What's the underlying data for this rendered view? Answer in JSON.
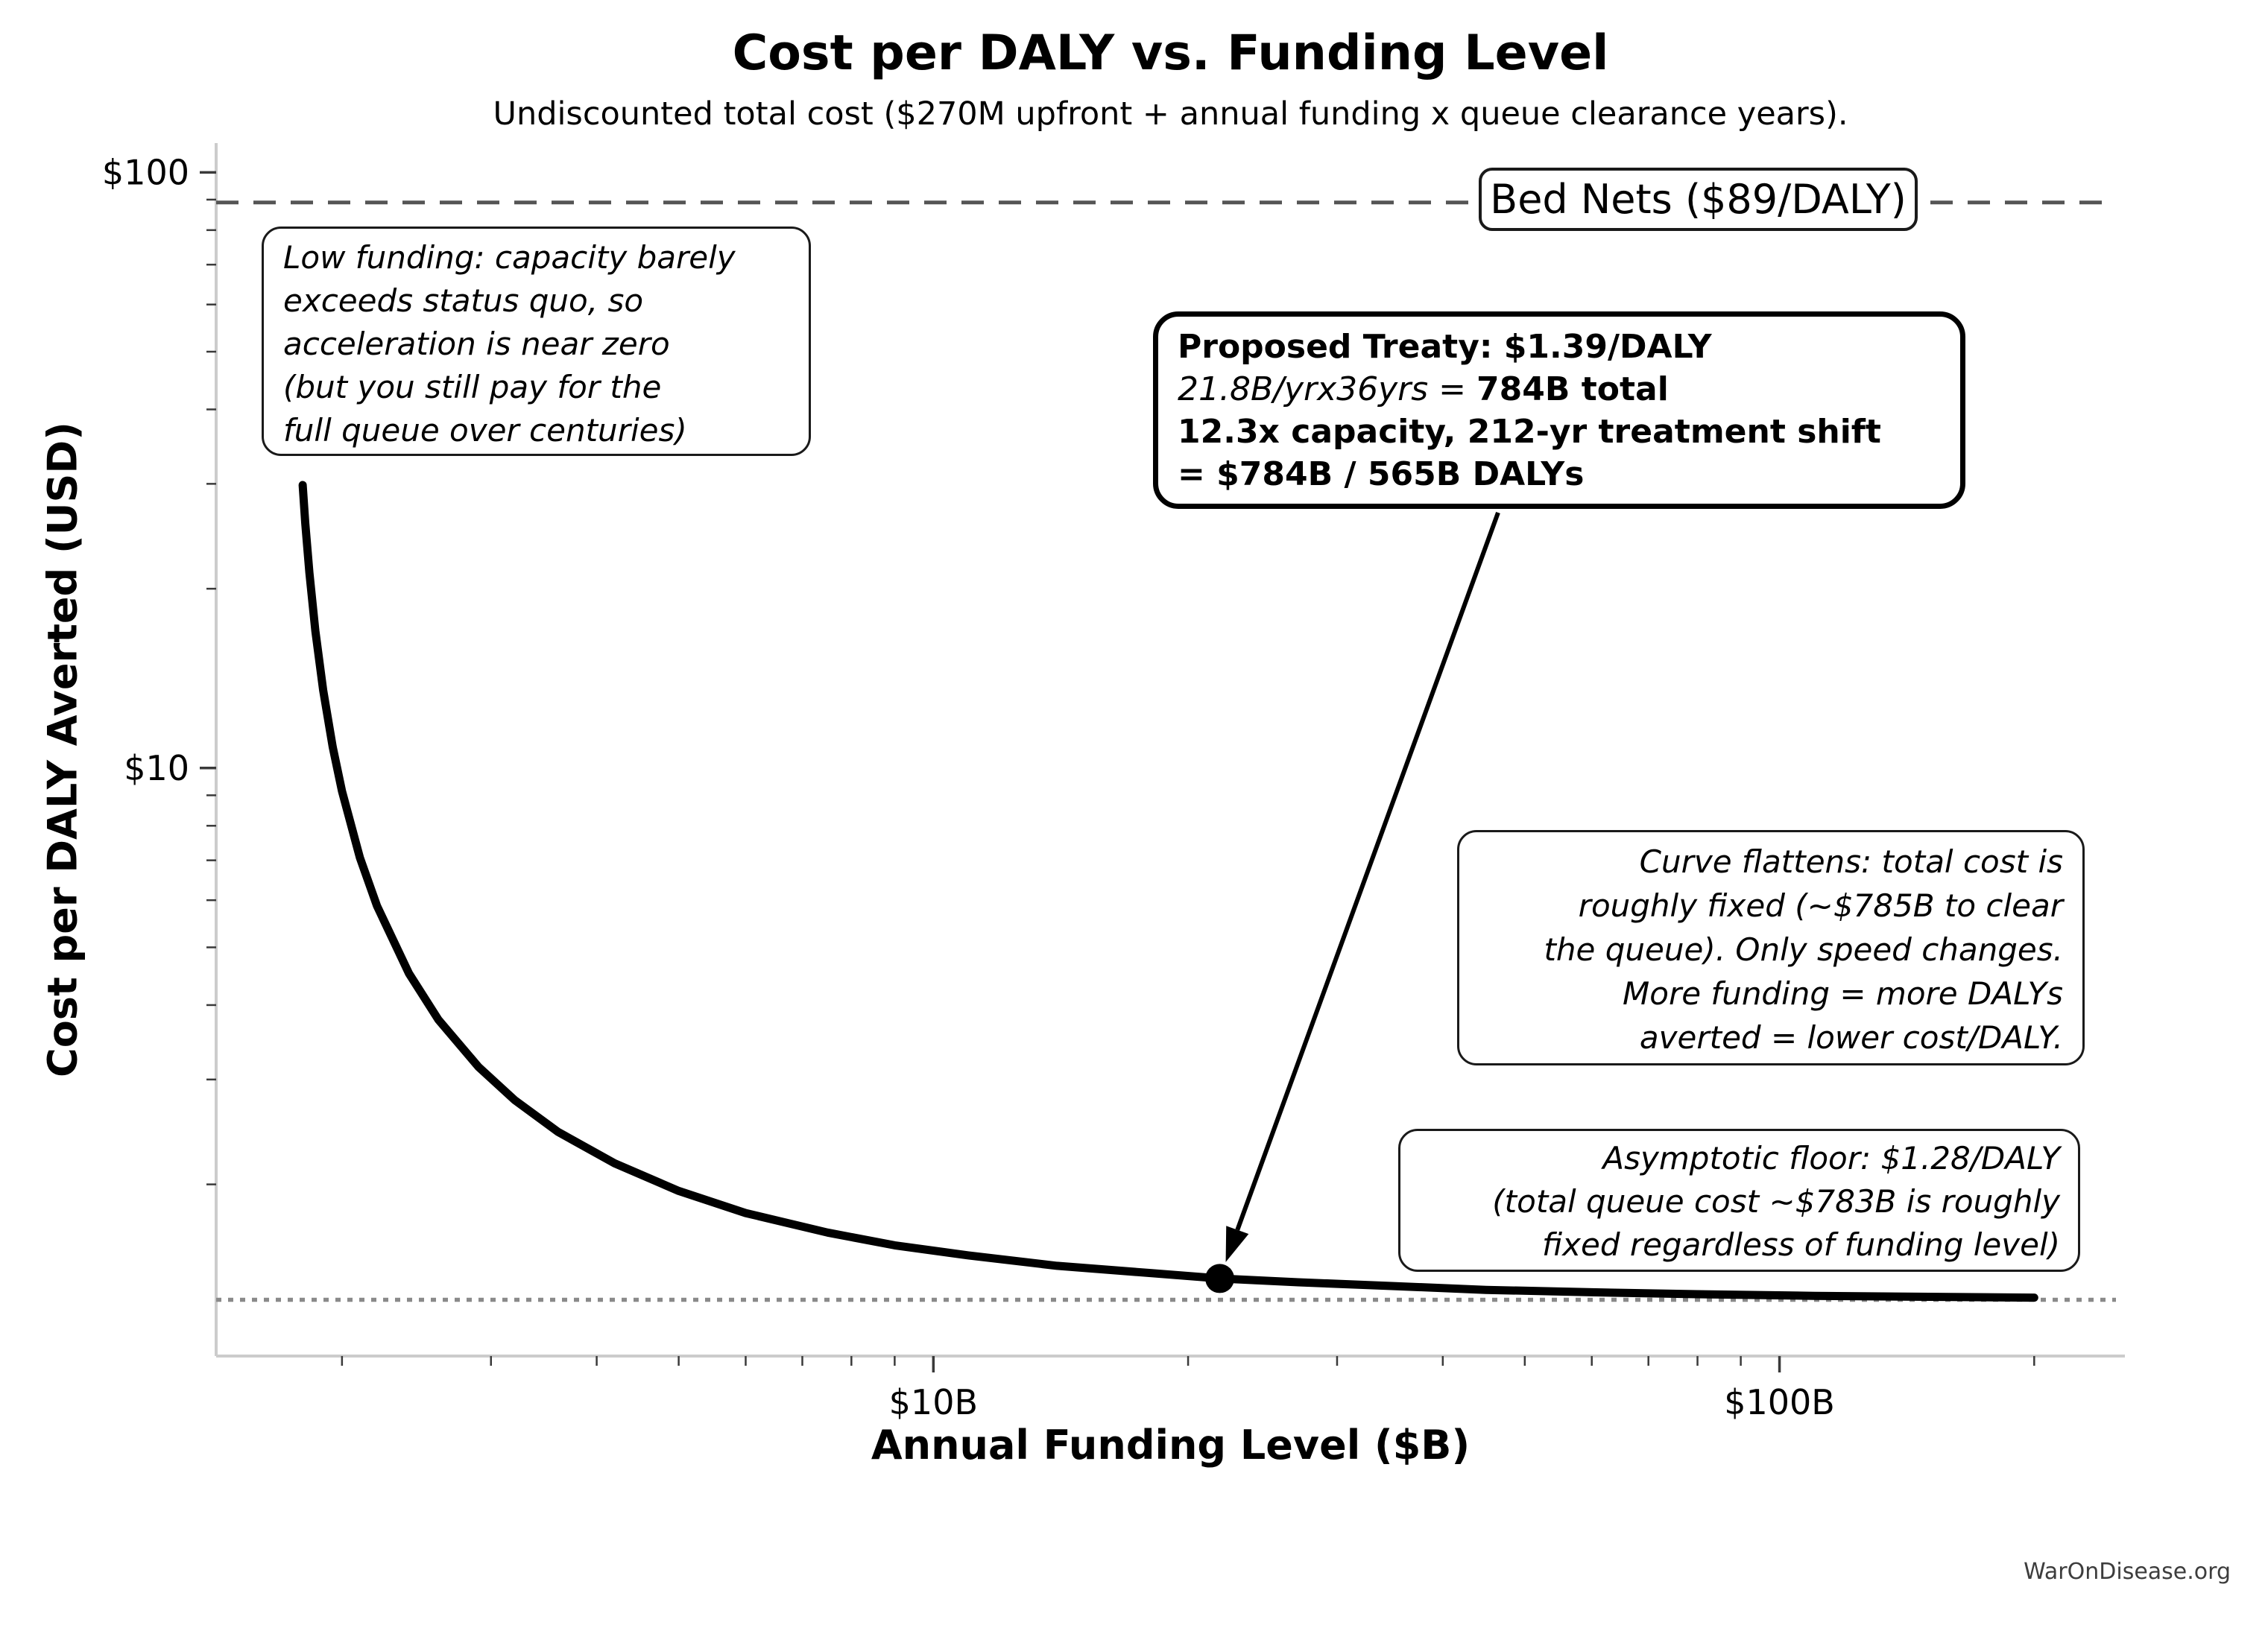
{
  "title": "Cost per DALY vs. Funding Level",
  "subtitle": "Undiscounted total cost ($270M upfront + annual funding x queue clearance years).",
  "watermark": "WarOnDisease.org",
  "chart_data": {
    "type": "line",
    "title": "Cost per DALY vs. Funding Level",
    "subtitle": "Undiscounted total cost ($270M upfront + annual funding x queue clearance years).",
    "xlabel": "Annual Funding Level ($B)",
    "ylabel": "Cost per DALY Averted (USD)",
    "x_scale": "log",
    "y_scale": "log",
    "xlim": [
      1.42,
      256
    ],
    "ylim": [
      1.03,
      112
    ],
    "grid": false,
    "x_ticks": [
      {
        "value": 10,
        "label": "$10B"
      },
      {
        "value": 100,
        "label": "$100B"
      }
    ],
    "x_minor_ticks": [
      2,
      3,
      4,
      5,
      6,
      7,
      8,
      9,
      20,
      30,
      40,
      50,
      60,
      70,
      80,
      90,
      200
    ],
    "y_ticks": [
      {
        "value": 100,
        "label": "$100"
      },
      {
        "value": 10,
        "label": "$10"
      }
    ],
    "y_minor_ticks": [
      90,
      80,
      70,
      60,
      50,
      40,
      30,
      20,
      9,
      8,
      7,
      6,
      5,
      4,
      3,
      2
    ],
    "series": [
      {
        "name": "cost-per-daly-curve",
        "color": "#000000",
        "width": 11,
        "points": [
          [
            1.797,
            29.86
          ],
          [
            1.81,
            25.74
          ],
          [
            1.83,
            21.29
          ],
          [
            1.86,
            17.0
          ],
          [
            1.9,
            13.51
          ],
          [
            1.95,
            10.85
          ],
          [
            2.0,
            9.14
          ],
          [
            2.1,
            7.07
          ],
          [
            2.2,
            5.87
          ],
          [
            2.4,
            4.52
          ],
          [
            2.6,
            3.78
          ],
          [
            2.9,
            3.15
          ],
          [
            3.2,
            2.77
          ],
          [
            3.6,
            2.45
          ],
          [
            4.2,
            2.17
          ],
          [
            5.0,
            1.95
          ],
          [
            6.0,
            1.79
          ],
          [
            7.5,
            1.66
          ],
          [
            9.0,
            1.58
          ],
          [
            11,
            1.52
          ],
          [
            14,
            1.46
          ],
          [
            18,
            1.42
          ],
          [
            21.8,
            1.39
          ],
          [
            27,
            1.37
          ],
          [
            35,
            1.35
          ],
          [
            45,
            1.33
          ],
          [
            60,
            1.318
          ],
          [
            80,
            1.308
          ],
          [
            110,
            1.3
          ],
          [
            150,
            1.295
          ],
          [
            200,
            1.291
          ]
        ]
      }
    ],
    "reference_lines": [
      {
        "name": "bed-nets-benchmark",
        "value": 89,
        "style": "dashed",
        "color": "#555555",
        "label": "Bed Nets ($89/DALY)"
      },
      {
        "name": "asymptotic-floor",
        "value": 1.28,
        "style": "dotted",
        "color": "#8a8a8a"
      }
    ],
    "marked_point": {
      "funding_b": 21.8,
      "cost_per_daly": 1.39
    }
  },
  "notes": {
    "low_funding": {
      "lines": [
        "Low funding: capacity barely",
        "exceeds status quo, so",
        "acceleration is near zero",
        "(but you still pay for the",
        "full queue over centuries)"
      ]
    },
    "treaty": {
      "line1": "Proposed Treaty: $1.39/DALY",
      "line2_italic": "21.8B/yrx36yrs =",
      "line2_bold": "784B total",
      "line3": "12.3x capacity, 212-yr treatment shift",
      "line4": "= $784B / 565B DALYs"
    },
    "curve_flattens": {
      "lines": [
        "Curve flattens: total cost is",
        "roughly fixed (~$785B to clear",
        "the queue). Only speed changes.",
        "More funding = more DALYs",
        "averted = lower cost/DALY."
      ]
    },
    "asymptotic_floor": {
      "lines": [
        "Asymptotic floor: $1.28/DALY",
        "(total queue cost ~$783B is roughly",
        "fixed regardless of funding level)"
      ]
    },
    "bed_nets_label": "Bed Nets ($89/DALY)"
  },
  "colors": {
    "curve": "#000000",
    "dashed_line": "#555555",
    "dotted_line": "#8a8a8a",
    "spine": "#cccccc",
    "tick": "#3a3a3a",
    "tick_label": "#000000"
  }
}
